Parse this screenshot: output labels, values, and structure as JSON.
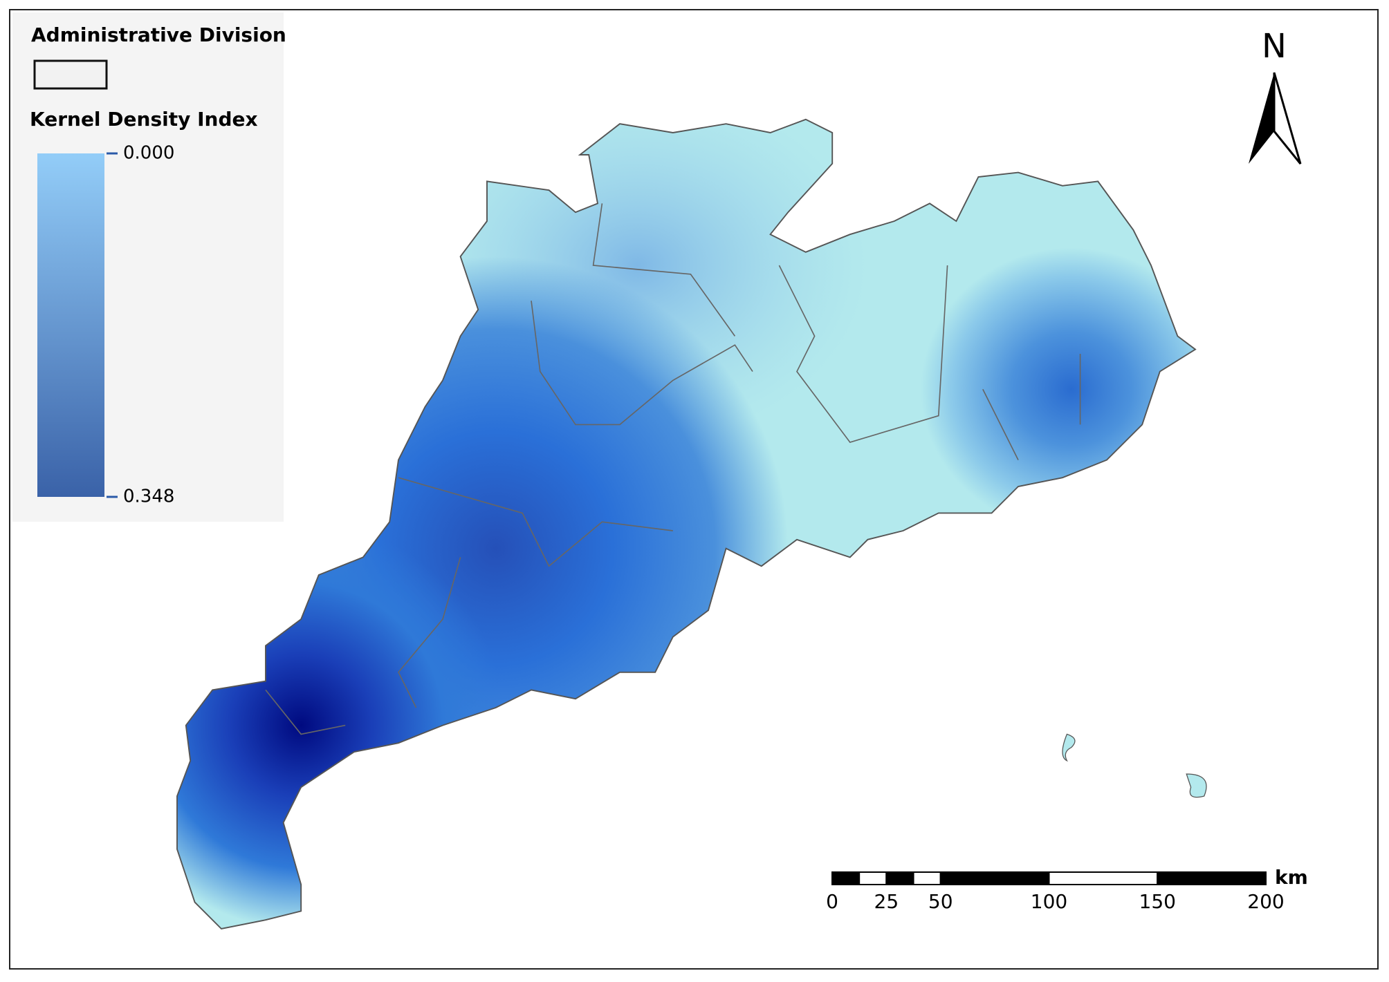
{
  "legend": {
    "boundary_title": "Administrative Division",
    "density_title": "Kernel Density Index",
    "density_range": [
      {
        "value": 0,
        "label": "0.000"
      },
      {
        "value": 0.348,
        "label": "0.348"
      }
    ]
  },
  "north_arrow": {
    "label": "N"
  },
  "scale_bar": {
    "unit": "km",
    "ticks": [
      0,
      25,
      50,
      100,
      150,
      200
    ]
  }
}
